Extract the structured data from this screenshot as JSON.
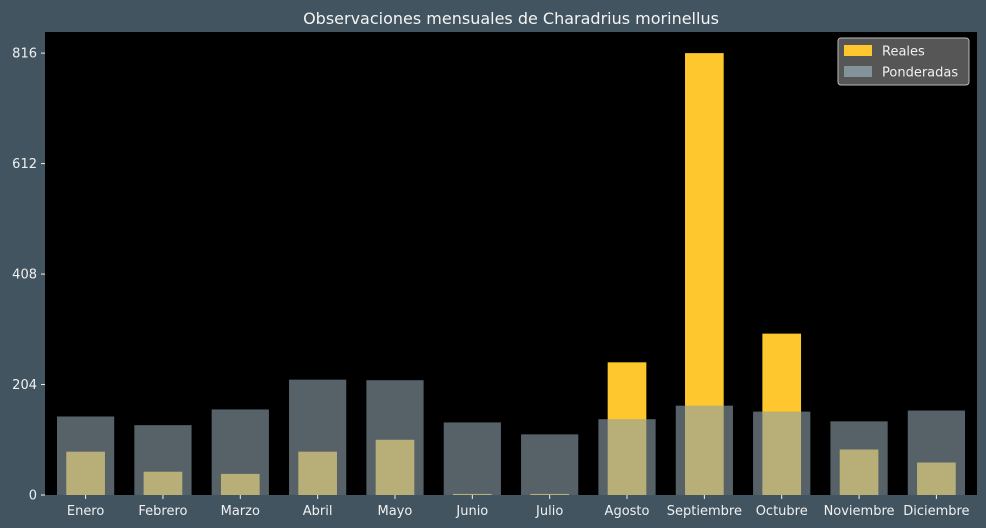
{
  "chart_data": {
    "type": "bar",
    "title": "Observaciones mensuales de Charadrius morinellus",
    "xlabel": "",
    "ylabel": "",
    "categories": [
      "Enero",
      "Febrero",
      "Marzo",
      "Abril",
      "Mayo",
      "Junio",
      "Julio",
      "Agosto",
      "Septiembre",
      "Octubre",
      "Noviembre",
      "Diciembre"
    ],
    "yticks": [
      0,
      204,
      408,
      612,
      816
    ],
    "ylim": [
      0,
      855
    ],
    "grid": false,
    "legend_position": "top-right",
    "series": [
      {
        "name": "Reales",
        "color": "#ffc72e",
        "values": [
          80,
          43,
          39,
          80,
          102,
          2,
          2,
          245,
          816,
          298,
          84,
          60
        ]
      },
      {
        "name": "Ponderadas",
        "color": "#8a9ea6",
        "values": [
          145,
          129,
          158,
          213,
          212,
          134,
          112,
          140,
          165,
          154,
          136,
          156
        ]
      }
    ],
    "colors": {
      "figure_background": "#41545f",
      "plot_background": "#000000",
      "text": "#f0f0f0",
      "legend_background": "#565656"
    }
  }
}
